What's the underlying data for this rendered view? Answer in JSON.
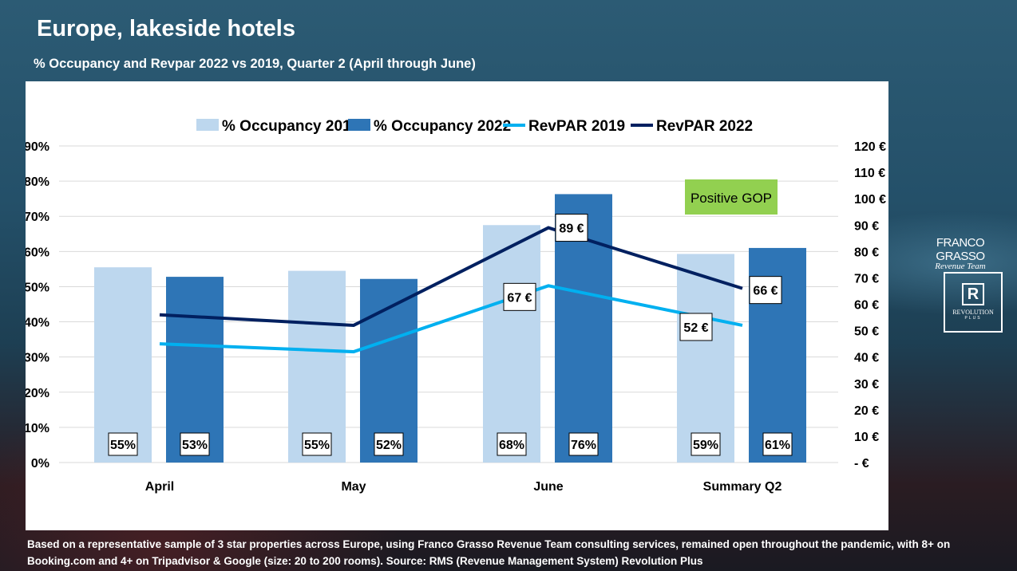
{
  "title": "Europe, lakeside hotels",
  "subtitle": "% Occupancy and Revpar 2022 vs 2019, Quarter 2 (April through June)",
  "footnote": "Based on a representative sample of 3 star properties across Europe, using Franco Grasso Revenue Team consulting services, remained open throughout the pandemic, with 8+ on Booking.com and 4+ on Tripadvisor & Google (size: 20 to 200 rooms). Source: RMS (Revenue Management System) Revolution Plus",
  "logos": {
    "franco_grasso": "FRANCO GRASSO",
    "franco_grasso_sub": "Revenue Team",
    "revolution": "REVOLUTION",
    "revolution_sub": "PLUS",
    "revolution_mark": "R"
  },
  "chart_data": {
    "type": "bar+line",
    "categories": [
      "April",
      "May",
      "June",
      "Summary Q2"
    ],
    "left_axis": {
      "min": 0,
      "max": 90,
      "step": 10,
      "ticks": [
        "0%",
        "10%",
        "20%",
        "30%",
        "40%",
        "50%",
        "60%",
        "70%",
        "80%",
        "90%"
      ]
    },
    "right_axis": {
      "min": 0,
      "max": 120,
      "step": 10,
      "ticks": [
        "-  €",
        "10 €",
        "20 €",
        "30 €",
        "40 €",
        "50 €",
        "60 €",
        "70 €",
        "80 €",
        "90 €",
        "100 €",
        "110 €",
        "120 €"
      ]
    },
    "grid": true,
    "legend_position": "top",
    "series": [
      {
        "name": "% Occupancy 2019",
        "kind": "bar",
        "axis": "left",
        "color": "#bdd7ee",
        "values": [
          55.5,
          54.5,
          67.5,
          59.3
        ],
        "labels": [
          "55%",
          "55%",
          "68%",
          "59%"
        ]
      },
      {
        "name": "% Occupancy 2022",
        "kind": "bar",
        "axis": "left",
        "color": "#2e75b6",
        "values": [
          52.8,
          52.2,
          76.3,
          61
        ],
        "labels": [
          "53%",
          "52%",
          "76%",
          "61%"
        ]
      },
      {
        "name": "RevPAR 2019",
        "kind": "line",
        "axis": "right",
        "color": "#00b0f0",
        "values": [
          45,
          42,
          67,
          52
        ],
        "labels": [
          null,
          null,
          "67 €",
          "52 €"
        ]
      },
      {
        "name": "RevPAR 2022",
        "kind": "line",
        "axis": "right",
        "color": "#002060",
        "values": [
          56,
          52,
          89,
          66
        ],
        "labels": [
          null,
          null,
          "89 €",
          "66 €"
        ]
      }
    ],
    "annotation": {
      "text": "Positive GOP",
      "color": "#92d050"
    }
  }
}
